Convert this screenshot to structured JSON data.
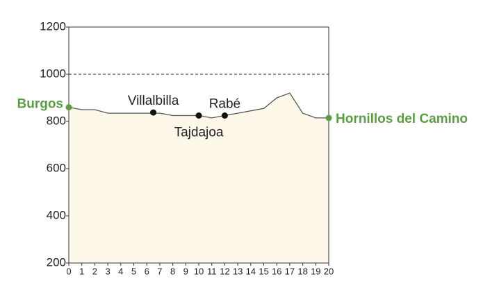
{
  "chart_data": {
    "type": "area",
    "x": [
      0,
      1,
      2,
      3,
      4,
      5,
      6,
      7,
      8,
      9,
      10,
      11,
      12,
      13,
      14,
      15,
      16,
      17,
      18,
      19,
      20
    ],
    "values": [
      860,
      850,
      850,
      835,
      835,
      835,
      835,
      835,
      825,
      825,
      825,
      815,
      825,
      835,
      845,
      855,
      900,
      920,
      835,
      815,
      815
    ],
    "fill": "#fdf8ea",
    "line_color": "#555555",
    "xlim": [
      0,
      20
    ],
    "xticks": [
      0,
      1,
      2,
      3,
      4,
      5,
      6,
      7,
      8,
      9,
      10,
      11,
      12,
      13,
      14,
      15,
      16,
      17,
      18,
      19,
      20
    ],
    "ylim": [
      200,
      1200
    ],
    "yticks": [
      200,
      400,
      600,
      800,
      1000,
      1200
    ],
    "reference_lines": [
      {
        "y": 1000,
        "style": "dashed"
      }
    ],
    "points": [
      {
        "name": "Burgos",
        "x": 0,
        "y": 860,
        "color": "#5a9e44",
        "label_position": "left"
      },
      {
        "name": "Villalbilla",
        "x": 6.5,
        "y": 838,
        "color": "#111111",
        "label_position": "above"
      },
      {
        "name": "Tajdajoa",
        "x": 10,
        "y": 825,
        "color": "#111111",
        "label_position": "below"
      },
      {
        "name": "Rabé",
        "x": 12,
        "y": 825,
        "color": "#111111",
        "label_position": "above"
      },
      {
        "name": "Hornillos del Camino",
        "x": 20,
        "y": 815,
        "color": "#5a9e44",
        "label_position": "right"
      }
    ]
  }
}
